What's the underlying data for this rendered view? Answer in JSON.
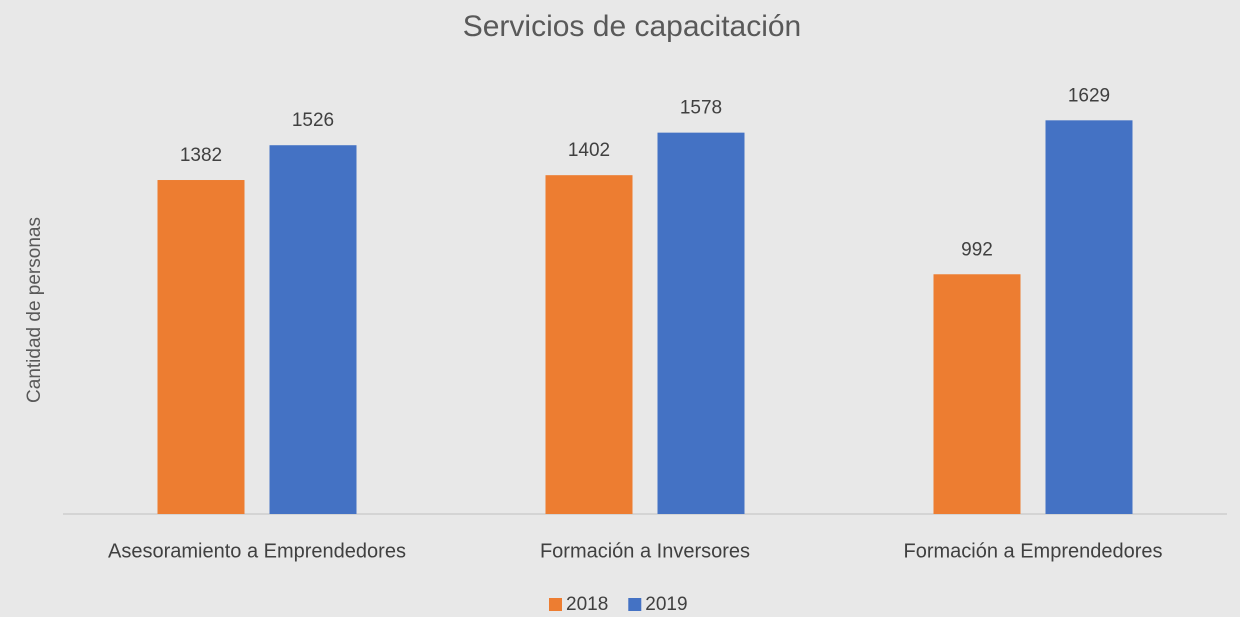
{
  "chart_data": {
    "type": "bar",
    "title": "Servicios de capacitación",
    "y_label": "Cantidad de personas",
    "categories": [
      "Asesoramiento a Emprendedores",
      "Formación a Inversores",
      "Formación a Emprendedores"
    ],
    "series": [
      {
        "name": "2018",
        "color": "#ed7d31",
        "values": [
          1382,
          1402,
          992
        ]
      },
      {
        "name": "2019",
        "color": "#4472c4",
        "values": [
          1526,
          1578,
          1629
        ]
      }
    ],
    "ylim": [
      0,
      1800
    ],
    "legend": "bottom"
  }
}
